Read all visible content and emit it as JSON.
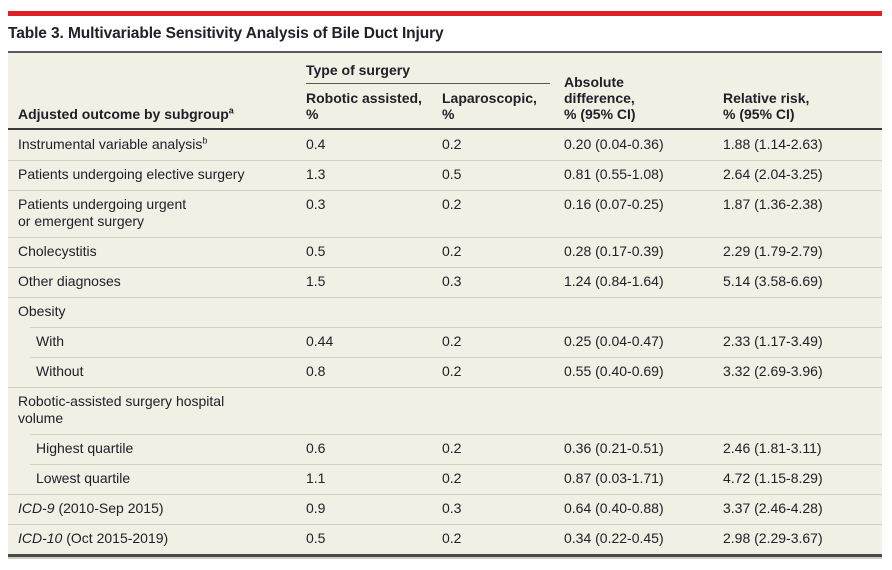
{
  "colors": {
    "accent_red": "#df2026",
    "table_bg": "#f2efe4",
    "text": "#202029",
    "row_divider": "#d4d1c6",
    "header_rule": "#3a3a3d",
    "table_top_rule": "#58585b",
    "table_bottom_rule": "#4a4a4d",
    "page_bg": "#ffffff"
  },
  "title": "Table 3. Multivariable Sensitivity Analysis of Bile Duct Injury",
  "table": {
    "spanner_label": "Type of surgery",
    "row_header_label": "Adjusted outcome by subgroup",
    "row_header_sup": "a",
    "columns": [
      {
        "label": "Robotic assisted,\n%"
      },
      {
        "label": "Laparoscopic,\n%"
      },
      {
        "label": "Absolute\ndifference,\n% (95% CI)"
      },
      {
        "label": "Relative risk,\n% (95% CI)"
      }
    ],
    "rows": [
      {
        "label": "Instrumental variable analysis",
        "sup": "b",
        "indent": false,
        "values": [
          "0.4",
          "0.2",
          "0.20 (0.04-0.36)",
          "1.88 (1.14-2.63)"
        ]
      },
      {
        "label": "Patients undergoing elective surgery",
        "indent": false,
        "values": [
          "1.3",
          "0.5",
          "0.81 (0.55-1.08)",
          "2.64 (2.04-3.25)"
        ]
      },
      {
        "label": "Patients undergoing urgent\nor emergent surgery",
        "indent": false,
        "values": [
          "0.3",
          "0.2",
          "0.16 (0.07-0.25)",
          "1.87 (1.36-2.38)"
        ]
      },
      {
        "label": "Cholecystitis",
        "indent": false,
        "values": [
          "0.5",
          "0.2",
          "0.28 (0.17-0.39)",
          "2.29 (1.79-2.79)"
        ]
      },
      {
        "label": "Other diagnoses",
        "indent": false,
        "values": [
          "1.5",
          "0.3",
          "1.24 (0.84-1.64)",
          "5.14 (3.58-6.69)"
        ]
      },
      {
        "label": "Obesity",
        "indent": false,
        "section": true,
        "values": [
          "",
          "",
          "",
          ""
        ]
      },
      {
        "label": "With",
        "indent": true,
        "values": [
          "0.44",
          "0.2",
          "0.25 (0.04-0.47)",
          "2.33 (1.17-3.49)"
        ]
      },
      {
        "label": "Without",
        "indent": true,
        "values": [
          "0.8",
          "0.2",
          "0.55 (0.40-0.69)",
          "3.32 (2.69-3.96)"
        ]
      },
      {
        "label": "Robotic-assisted surgery hospital\nvolume",
        "indent": false,
        "section": true,
        "values": [
          "",
          "",
          "",
          ""
        ]
      },
      {
        "label": "Highest quartile",
        "indent": true,
        "values": [
          "0.6",
          "0.2",
          "0.36 (0.21-0.51)",
          "2.46 (1.81-3.11)"
        ]
      },
      {
        "label": "Lowest quartile",
        "indent": true,
        "values": [
          "1.1",
          "0.2",
          "0.87 (0.03-1.71)",
          "4.72 (1.15-8.29)"
        ]
      },
      {
        "label_italic": "ICD-9",
        "label": " (2010-Sep 2015)",
        "indent": false,
        "values": [
          "0.9",
          "0.3",
          "0.64 (0.40-0.88)",
          "3.37 (2.46-4.28)"
        ]
      },
      {
        "label_italic": "ICD-10",
        "label": " (Oct 2015-2019)",
        "indent": false,
        "values": [
          "0.5",
          "0.2",
          "0.34 (0.22-0.45)",
          "2.98 (2.29-3.67)"
        ]
      }
    ]
  }
}
